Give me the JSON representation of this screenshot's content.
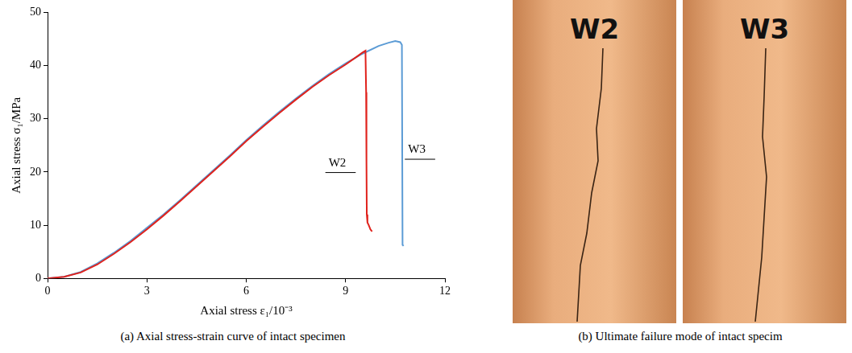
{
  "chart_data": {
    "type": "line",
    "caption": "(a) Axial stress-strain curve of intact specimen",
    "x_label": "Axial stress ε₁/10⁻³",
    "y_label": "Axial stress σ₁/MPa",
    "xlim": [
      0,
      12
    ],
    "xticks": [
      0,
      3,
      6,
      9,
      12
    ],
    "ylim": [
      0,
      50
    ],
    "yticks": [
      0,
      10,
      20,
      30,
      40,
      50
    ],
    "grid": false,
    "series": [
      {
        "name": "W2",
        "color": "#e0221c",
        "x": [
          0,
          0.5,
          1,
          1.5,
          2,
          2.5,
          3,
          3.5,
          4,
          4.5,
          5,
          5.5,
          6,
          6.5,
          7,
          7.5,
          8,
          8.5,
          9,
          9.3,
          9.5,
          9.6,
          9.62,
          9.63,
          9.64,
          9.66,
          9.7,
          9.75,
          9.8
        ],
        "values": [
          0,
          0.3,
          1.1,
          2.6,
          4.6,
          6.8,
          9.2,
          11.8,
          14.5,
          17.3,
          20.1,
          22.9,
          25.8,
          28.5,
          31.1,
          33.6,
          36.0,
          38.2,
          40.2,
          41.5,
          42.4,
          42.8,
          35,
          22,
          12,
          10.5,
          10,
          9.2,
          8.8
        ]
      },
      {
        "name": "W3",
        "color": "#5b9bd5",
        "x": [
          0,
          0.5,
          1,
          1.5,
          2,
          2.5,
          3,
          3.5,
          4,
          4.5,
          5,
          5.5,
          6,
          6.5,
          7,
          7.5,
          8,
          8.5,
          9,
          9.5,
          10,
          10.3,
          10.5,
          10.65,
          10.7,
          10.72,
          10.75
        ],
        "values": [
          0,
          0.3,
          1.2,
          2.8,
          4.8,
          7.0,
          9.5,
          12.0,
          14.7,
          17.5,
          20.3,
          23.1,
          26.0,
          28.7,
          31.3,
          33.8,
          36.2,
          38.4,
          40.4,
          42.2,
          43.7,
          44.3,
          44.6,
          44.4,
          43.9,
          6.3,
          6.1
        ]
      }
    ],
    "annotations": [
      {
        "text": "W2",
        "x": 8.75,
        "y": 20.5
      },
      {
        "text": "W3",
        "x": 11.15,
        "y": 23
      }
    ]
  },
  "photo_panel": {
    "caption": "(b) Ultimate failure mode of intact specim",
    "specimens": [
      {
        "label": "W2"
      },
      {
        "label": "W3"
      }
    ]
  }
}
